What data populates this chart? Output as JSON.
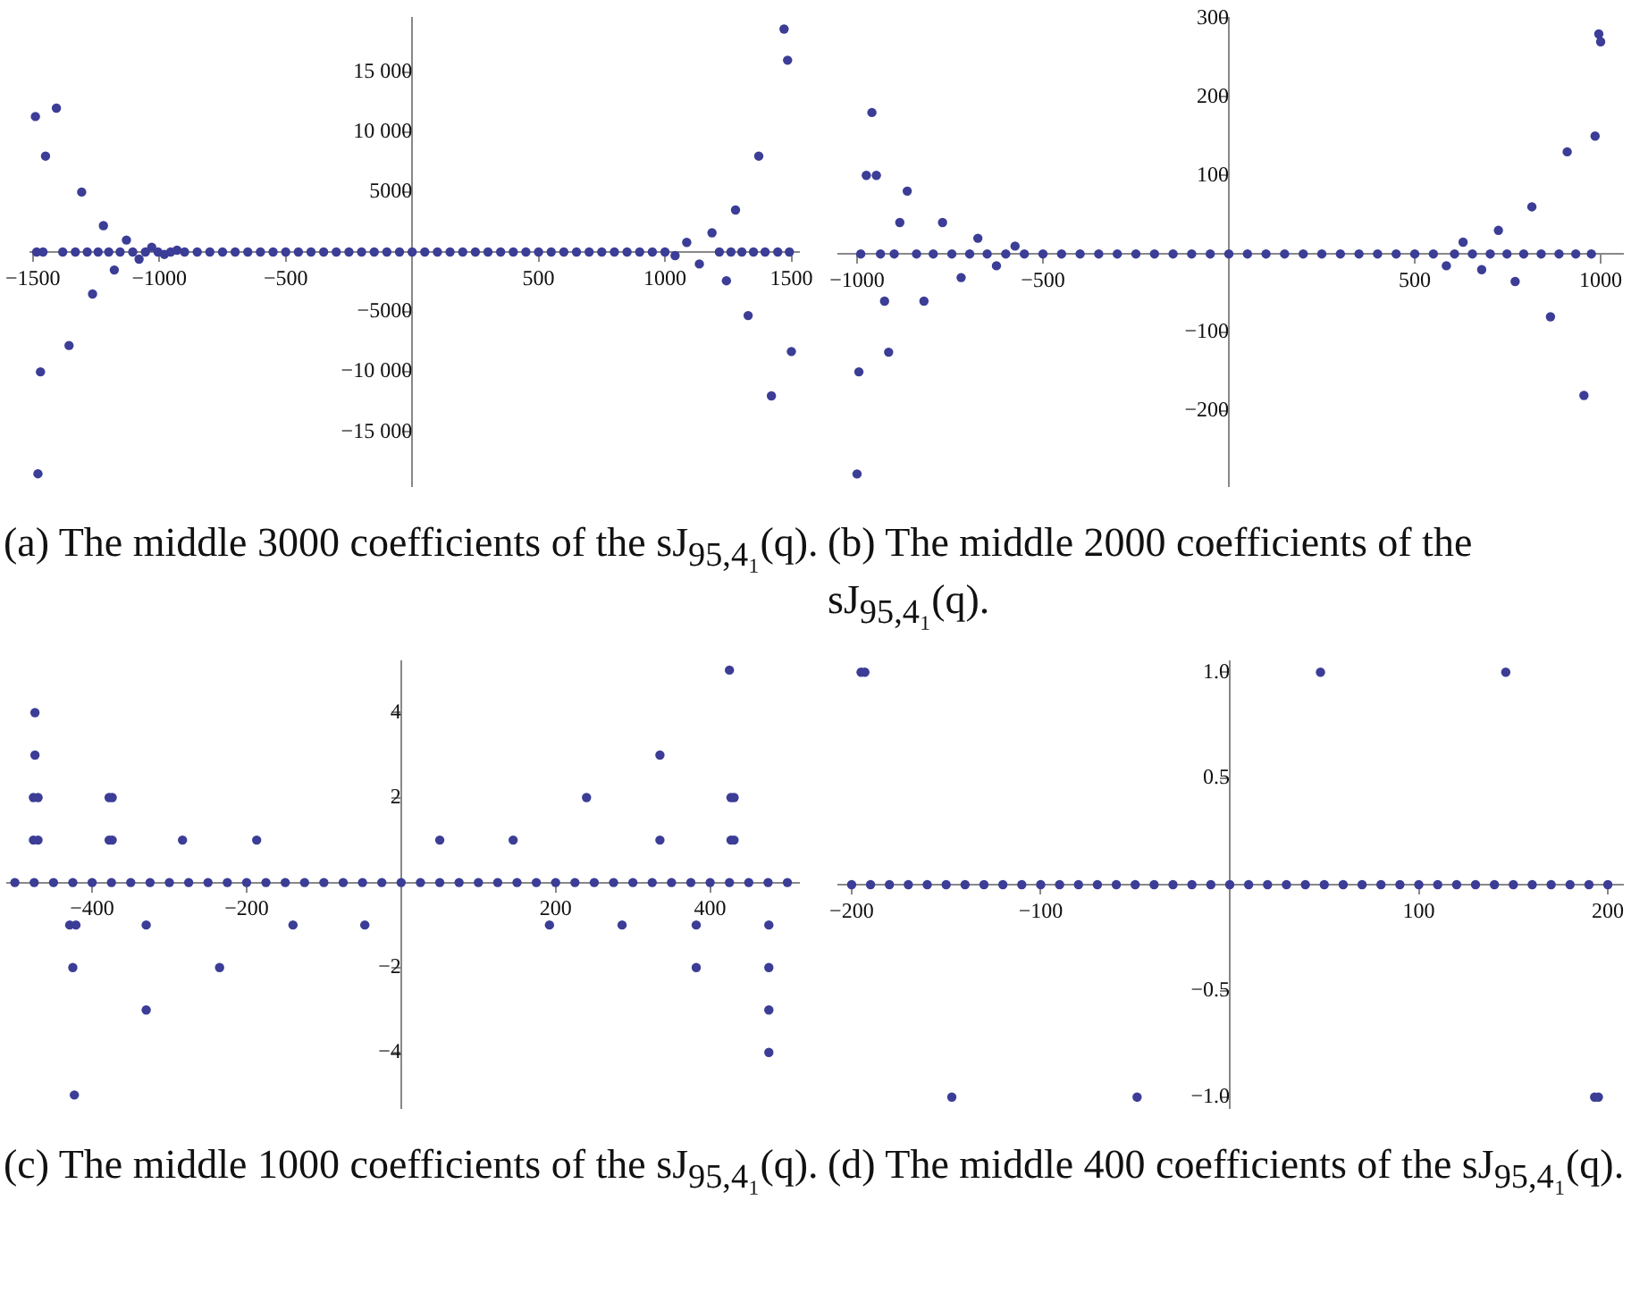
{
  "chart_data": [
    {
      "type": "scatter",
      "color": "#3b3d96",
      "marker": "circle",
      "grid": false,
      "xlim": [
        -1510,
        1530
      ],
      "ylim": [
        -19500,
        19500
      ],
      "xticks": [
        -1500,
        -1000,
        -500,
        500,
        1000,
        1500
      ],
      "yticks": [
        {
          "value": -15000,
          "label": "−15 000"
        },
        {
          "value": -10000,
          "label": "−10 000"
        },
        {
          "value": -5000,
          "label": "−5000"
        },
        {
          "value": 5000,
          "label": "5000"
        },
        {
          "value": 10000,
          "label": "10 000"
        },
        {
          "value": 15000,
          "label": "15 000"
        }
      ],
      "annotations": [
        "(a) The middle 3000 coefficients of the sJ$_{95,4₁}$(q)."
      ],
      "x": [
        -1490,
        -1485,
        -1480,
        -1470,
        -1460,
        -1450,
        -1407,
        -1382,
        -1357,
        -1332,
        -1307,
        -1285,
        -1264,
        -1242,
        -1221,
        -1200,
        -1178,
        -1155,
        -1130,
        -1105,
        -1080,
        -1055,
        -1030,
        -1005,
        -980,
        -955,
        -930,
        -900,
        -850,
        -800,
        -750,
        -700,
        -650,
        -600,
        -550,
        -500,
        -450,
        -400,
        -350,
        -300,
        -250,
        -200,
        -150,
        -100,
        -50,
        0,
        50,
        100,
        150,
        200,
        250,
        300,
        350,
        400,
        450,
        500,
        550,
        600,
        650,
        700,
        750,
        800,
        850,
        900,
        950,
        1000,
        1040,
        1086,
        1136,
        1186,
        1215,
        1243,
        1261,
        1279,
        1304,
        1329,
        1350,
        1371,
        1396,
        1421,
        1446,
        1471,
        1485,
        1492,
        1500
      ],
      "values": [
        11300,
        0,
        -18500,
        -10000,
        0,
        8000,
        12000,
        0,
        -7800,
        0,
        5000,
        0,
        -3500,
        0,
        2200,
        0,
        -1500,
        0,
        1000,
        0,
        -600,
        0,
        400,
        0,
        -200,
        0,
        150,
        0,
        0,
        0,
        0,
        0,
        0,
        0,
        0,
        0,
        0,
        0,
        0,
        0,
        0,
        0,
        0,
        0,
        0,
        0,
        0,
        0,
        0,
        0,
        0,
        0,
        0,
        0,
        0,
        0,
        0,
        0,
        0,
        0,
        0,
        0,
        0,
        0,
        0,
        0,
        -300,
        800,
        -1000,
        1600,
        0,
        -2400,
        0,
        3500,
        0,
        -5300,
        0,
        8000,
        0,
        -12000,
        0,
        18600,
        16000,
        0,
        -8300
      ]
    },
    {
      "type": "scatter",
      "color": "#3b3d96",
      "marker": "circle",
      "grid": false,
      "xlim": [
        -1050,
        1060
      ],
      "ylim": [
        -295,
        300
      ],
      "xticks": [
        -1000,
        -500,
        500,
        1000
      ],
      "yticks": [
        {
          "value": -200,
          "label": "−200"
        },
        {
          "value": -100,
          "label": "−100"
        },
        100,
        200,
        300
      ],
      "annotations": [
        "(b) The middle 2000 coefficients of the sJ$_{95,4₁}$(q)."
      ],
      "x": [
        -1000,
        -995,
        -990,
        -975,
        -960,
        -948,
        -937,
        -926,
        -915,
        -900,
        -885,
        -865,
        -840,
        -820,
        -795,
        -770,
        -745,
        -720,
        -697,
        -675,
        -650,
        -625,
        -600,
        -575,
        -550,
        -500,
        -450,
        -400,
        -350,
        -300,
        -250,
        -200,
        -150,
        -100,
        -50,
        0,
        50,
        100,
        150,
        200,
        250,
        300,
        350,
        400,
        450,
        500,
        550,
        585,
        607,
        630,
        655,
        680,
        703,
        725,
        748,
        770,
        793,
        815,
        840,
        865,
        888,
        910,
        933,
        955,
        975,
        985,
        995,
        1000
      ],
      "values": [
        -280,
        -150,
        0,
        100,
        180,
        100,
        0,
        -60,
        -125,
        0,
        40,
        80,
        0,
        -60,
        0,
        40,
        0,
        -30,
        0,
        20,
        0,
        -15,
        0,
        10,
        0,
        0,
        0,
        0,
        0,
        0,
        0,
        0,
        0,
        0,
        0,
        0,
        0,
        0,
        0,
        0,
        0,
        0,
        0,
        0,
        0,
        0,
        0,
        -15,
        0,
        15,
        0,
        -20,
        0,
        30,
        0,
        -35,
        0,
        60,
        0,
        -80,
        0,
        130,
        0,
        -180,
        0,
        150,
        280,
        270
      ]
    },
    {
      "type": "scatter",
      "color": "#3b3d96",
      "marker": "circle",
      "grid": false,
      "xlim": [
        -510,
        515
      ],
      "ylim": [
        -5.3,
        5.2
      ],
      "xticks": [
        -400,
        -200,
        200,
        400
      ],
      "yticks": [
        {
          "value": -4,
          "label": "−4"
        },
        {
          "value": -2,
          "label": "−2"
        },
        2,
        4
      ],
      "annotations": [
        "(c) The middle 1000 coefficients of the sJ$_{95,4₁}$(q)."
      ],
      "x": [
        -500,
        -475,
        -450,
        -425,
        -400,
        -375,
        -350,
        -325,
        -300,
        -275,
        -250,
        -225,
        -200,
        -175,
        -150,
        -125,
        -100,
        -75,
        -50,
        -25,
        0,
        25,
        50,
        75,
        100,
        125,
        150,
        175,
        200,
        225,
        250,
        275,
        300,
        325,
        350,
        375,
        400,
        425,
        450,
        475,
        500,
        -476,
        -476,
        -474,
        -474,
        -470,
        -470,
        -429,
        -421,
        -425,
        -423,
        -378,
        -374,
        -378,
        -374,
        -330,
        -330,
        -283,
        -235,
        -187,
        -140,
        -47,
        50,
        145,
        192,
        240,
        286,
        335,
        335,
        382,
        382,
        427,
        431,
        427,
        431,
        425,
        476,
        476,
        476,
        476
      ],
      "values": [
        0,
        0,
        0,
        0,
        0,
        0,
        0,
        0,
        0,
        0,
        0,
        0,
        0,
        0,
        0,
        0,
        0,
        0,
        0,
        0,
        0,
        0,
        0,
        0,
        0,
        0,
        0,
        0,
        0,
        0,
        0,
        0,
        0,
        0,
        0,
        0,
        0,
        0,
        0,
        0,
        0,
        2,
        1,
        4,
        3,
        2,
        1,
        -1,
        -1,
        -2,
        -5,
        2,
        2,
        1,
        1,
        -1,
        -3,
        1,
        -2,
        1,
        -1,
        -1,
        1,
        1,
        -1,
        2,
        -1,
        3,
        1,
        -1,
        -2,
        2,
        2,
        1,
        1,
        5,
        -1,
        -2,
        -3,
        -4
      ]
    },
    {
      "type": "scatter",
      "color": "#3b3d96",
      "marker": "circle",
      "grid": false,
      "xlim": [
        -207,
        208
      ],
      "ylim": [
        -1.05,
        1.05
      ],
      "xticks": [
        -200,
        -100,
        100,
        200
      ],
      "yticks": [
        {
          "value": -1,
          "label": "−1.0"
        },
        {
          "value": -0.5,
          "label": "−0.5"
        },
        0.5,
        {
          "value": 1,
          "label": "1.0"
        }
      ],
      "annotations": [
        "(d) The middle 400 coefficients of the sJ$_{95,4₁}$(q)."
      ],
      "x": [
        -200,
        -190,
        -180,
        -170,
        -160,
        -150,
        -140,
        -130,
        -120,
        -110,
        -100,
        -90,
        -80,
        -70,
        -60,
        -50,
        -40,
        -30,
        -20,
        -10,
        0,
        10,
        20,
        30,
        40,
        50,
        60,
        70,
        80,
        90,
        100,
        110,
        120,
        130,
        140,
        150,
        160,
        170,
        180,
        190,
        200,
        -195,
        -193,
        -147,
        -49,
        48,
        146,
        193,
        195
      ],
      "values": [
        0,
        0,
        0,
        0,
        0,
        0,
        0,
        0,
        0,
        0,
        0,
        0,
        0,
        0,
        0,
        0,
        0,
        0,
        0,
        0,
        0,
        0,
        0,
        0,
        0,
        0,
        0,
        0,
        0,
        0,
        0,
        0,
        0,
        0,
        0,
        0,
        0,
        0,
        0,
        0,
        0,
        1,
        1,
        -1,
        -1,
        1,
        1,
        -1,
        -1
      ]
    }
  ]
}
